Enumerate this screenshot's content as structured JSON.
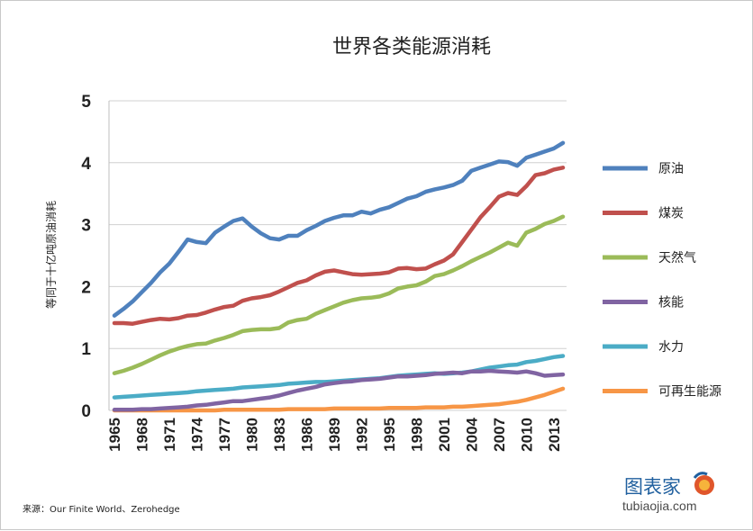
{
  "chart_data": {
    "type": "line",
    "title": "世界各类能源消耗",
    "ylabel": "等同于十亿吨原油消耗",
    "xlabel": "",
    "ylim": [
      0,
      5
    ],
    "yticks": [
      "0",
      "1",
      "2",
      "3",
      "4",
      "5"
    ],
    "xticks": [
      "1965",
      "1968",
      "1971",
      "1974",
      "1977",
      "1980",
      "1983",
      "1986",
      "1989",
      "1992",
      "1995",
      "1998",
      "2001",
      "2004",
      "2007",
      "2010",
      "2013"
    ],
    "x_start": 1965,
    "x_end": 2014,
    "grid": "horizontal",
    "legend_position": "right",
    "series": [
      {
        "name": "原油",
        "color": "#4f81bd",
        "values": [
          1.53,
          1.64,
          1.76,
          1.91,
          2.06,
          2.23,
          2.37,
          2.56,
          2.76,
          2.72,
          2.7,
          2.87,
          2.97,
          3.06,
          3.1,
          2.97,
          2.86,
          2.78,
          2.76,
          2.82,
          2.82,
          2.91,
          2.98,
          3.06,
          3.11,
          3.15,
          3.15,
          3.21,
          3.18,
          3.24,
          3.28,
          3.35,
          3.42,
          3.46,
          3.53,
          3.57,
          3.6,
          3.64,
          3.71,
          3.87,
          3.92,
          3.97,
          4.02,
          4.01,
          3.95,
          4.08,
          4.13,
          4.18,
          4.23,
          4.32
        ]
      },
      {
        "name": "煤炭",
        "color": "#c0504d",
        "values": [
          1.41,
          1.41,
          1.4,
          1.43,
          1.46,
          1.48,
          1.47,
          1.49,
          1.53,
          1.54,
          1.58,
          1.63,
          1.67,
          1.69,
          1.77,
          1.81,
          1.83,
          1.86,
          1.92,
          1.99,
          2.06,
          2.1,
          2.18,
          2.24,
          2.26,
          2.23,
          2.2,
          2.19,
          2.2,
          2.21,
          2.23,
          2.29,
          2.3,
          2.28,
          2.29,
          2.36,
          2.42,
          2.52,
          2.72,
          2.92,
          3.12,
          3.28,
          3.45,
          3.51,
          3.48,
          3.62,
          3.8,
          3.83,
          3.89,
          3.92
        ]
      },
      {
        "name": "天然气",
        "color": "#9bbb59",
        "values": [
          0.6,
          0.64,
          0.69,
          0.75,
          0.82,
          0.89,
          0.95,
          1.0,
          1.04,
          1.07,
          1.08,
          1.13,
          1.17,
          1.22,
          1.28,
          1.3,
          1.31,
          1.31,
          1.33,
          1.42,
          1.46,
          1.48,
          1.56,
          1.62,
          1.68,
          1.74,
          1.78,
          1.81,
          1.82,
          1.84,
          1.89,
          1.97,
          2.0,
          2.02,
          2.08,
          2.17,
          2.2,
          2.26,
          2.33,
          2.41,
          2.48,
          2.55,
          2.63,
          2.71,
          2.66,
          2.87,
          2.93,
          3.01,
          3.06,
          3.13
        ]
      },
      {
        "name": "核能",
        "color": "#8064a2",
        "values": [
          0.01,
          0.01,
          0.01,
          0.02,
          0.02,
          0.03,
          0.04,
          0.05,
          0.06,
          0.08,
          0.09,
          0.11,
          0.13,
          0.15,
          0.15,
          0.17,
          0.19,
          0.21,
          0.24,
          0.28,
          0.32,
          0.35,
          0.38,
          0.42,
          0.44,
          0.46,
          0.47,
          0.49,
          0.5,
          0.51,
          0.53,
          0.55,
          0.55,
          0.56,
          0.57,
          0.59,
          0.6,
          0.61,
          0.6,
          0.63,
          0.63,
          0.64,
          0.63,
          0.62,
          0.61,
          0.63,
          0.6,
          0.56,
          0.57,
          0.58
        ]
      },
      {
        "name": "水力",
        "color": "#4bacc6",
        "values": [
          0.21,
          0.22,
          0.23,
          0.24,
          0.25,
          0.26,
          0.27,
          0.28,
          0.29,
          0.31,
          0.32,
          0.33,
          0.34,
          0.35,
          0.37,
          0.38,
          0.39,
          0.4,
          0.41,
          0.43,
          0.44,
          0.45,
          0.46,
          0.46,
          0.47,
          0.48,
          0.49,
          0.5,
          0.51,
          0.52,
          0.54,
          0.56,
          0.57,
          0.58,
          0.59,
          0.6,
          0.59,
          0.6,
          0.61,
          0.63,
          0.66,
          0.69,
          0.71,
          0.73,
          0.74,
          0.78,
          0.8,
          0.83,
          0.86,
          0.88
        ]
      },
      {
        "name": "可再生能源",
        "color": "#f79646",
        "values": [
          0.0,
          0.0,
          0.0,
          0.0,
          0.0,
          0.0,
          0.0,
          0.0,
          0.0,
          0.0,
          0.0,
          0.0,
          0.01,
          0.01,
          0.01,
          0.01,
          0.01,
          0.01,
          0.01,
          0.02,
          0.02,
          0.02,
          0.02,
          0.02,
          0.03,
          0.03,
          0.03,
          0.03,
          0.03,
          0.03,
          0.04,
          0.04,
          0.04,
          0.04,
          0.05,
          0.05,
          0.05,
          0.06,
          0.06,
          0.07,
          0.08,
          0.09,
          0.1,
          0.12,
          0.14,
          0.17,
          0.21,
          0.25,
          0.3,
          0.35
        ]
      }
    ]
  },
  "source_text": "来源：Our Finite World、Zerohedge",
  "watermark": {
    "brand": "图表家",
    "url": "tubiaojia.com"
  }
}
